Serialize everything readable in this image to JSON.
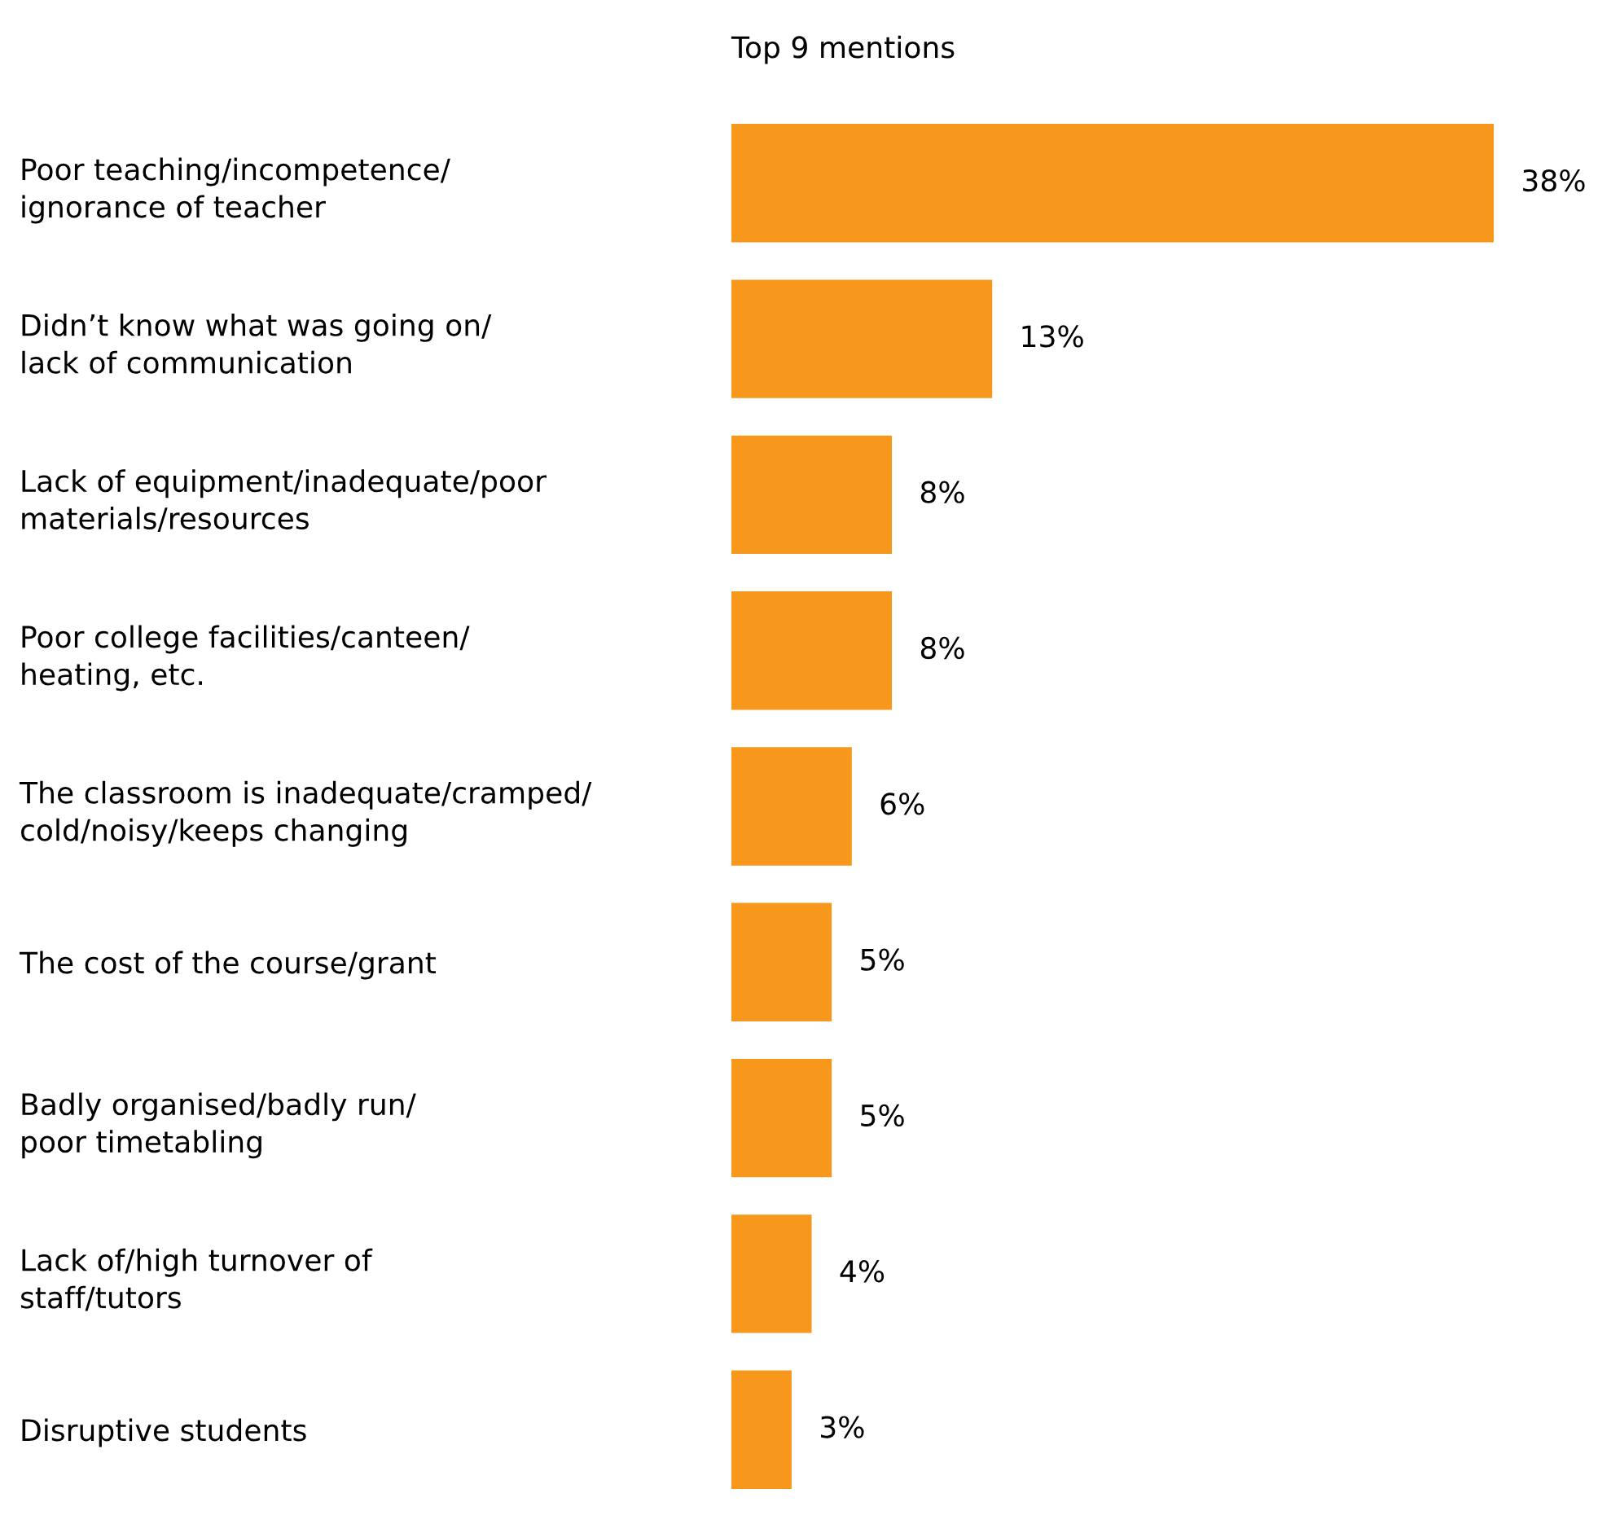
{
  "chart_data": {
    "type": "bar",
    "orientation": "horizontal",
    "title": "Top 9 mentions",
    "tick_labels": "y",
    "categories": [
      "Poor teaching/incompetence/\nignorance of teacher",
      "Didn’t know what was going on/\nlack of communication",
      "Lack of equipment/inadequate/poor\nmaterials/resources",
      "Poor college facilities/canteen/\nheating, etc.",
      "The classroom is inadequate/cramped/\ncold/noisy/keeps changing",
      "The cost of the course/grant",
      "Badly organised/badly run/\npoor timetabling",
      "Lack of/high turnover of\nstaff/tutors",
      "Disruptive students"
    ],
    "values": [
      38,
      13,
      8,
      8,
      6,
      5,
      5,
      4,
      3
    ],
    "value_labels": [
      "38%",
      "13%",
      "8%",
      "8%",
      "6%",
      "5%",
      "5%",
      "4%",
      "3%"
    ],
    "color": "#f7981d",
    "grid": false,
    "legend": false
  }
}
